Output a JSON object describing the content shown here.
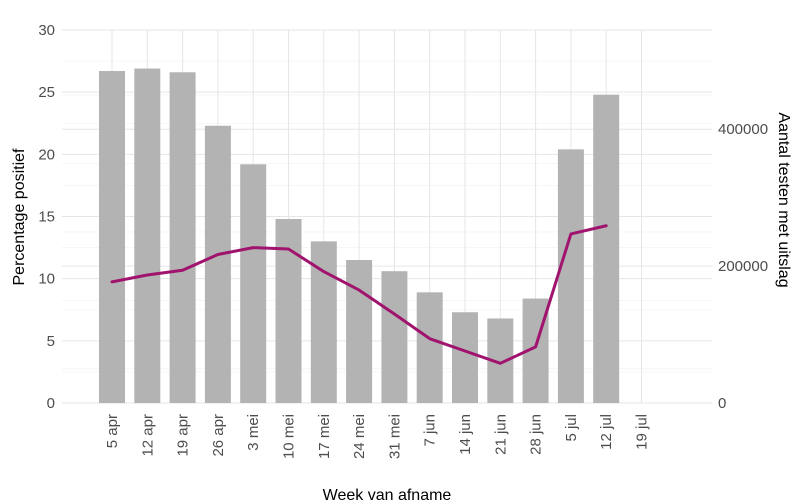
{
  "chart_data": {
    "type": "bar",
    "xlabel": "Week van afname",
    "ylabel": "Percentage positief",
    "y2label": "Aantal testen met uitslag",
    "categories": [
      "5 apr",
      "12 apr",
      "19 apr",
      "26 apr",
      "3 mei",
      "10 mei",
      "17 mei",
      "24 mei",
      "31 mei",
      "7 jun",
      "14 jun",
      "21 jun",
      "28 jun",
      "5 jul",
      "12 jul",
      "19 jul"
    ],
    "ylim": [
      0,
      30
    ],
    "yticks": [
      "0",
      "5",
      "10",
      "15",
      "20",
      "25",
      "30"
    ],
    "y2lim": [
      0,
      545000
    ],
    "y2ticks": [
      "0",
      "200000",
      "400000"
    ],
    "grid": true,
    "legend": "none",
    "series": [
      {
        "type": "bar",
        "axis": "left",
        "color": "#b3b3b3",
        "values": [
          26.7,
          26.9,
          26.6,
          22.3,
          19.2,
          14.8,
          13.0,
          11.5,
          10.6,
          8.9,
          7.3,
          6.8,
          8.4,
          20.4,
          24.8,
          null
        ]
      },
      {
        "type": "line",
        "axis": "right",
        "color": "#a0146e",
        "values": [
          177000,
          187000,
          194000,
          217000,
          227000,
          225000,
          192000,
          165000,
          130000,
          94000,
          76000,
          58000,
          82000,
          247000,
          259000,
          null
        ]
      }
    ]
  }
}
